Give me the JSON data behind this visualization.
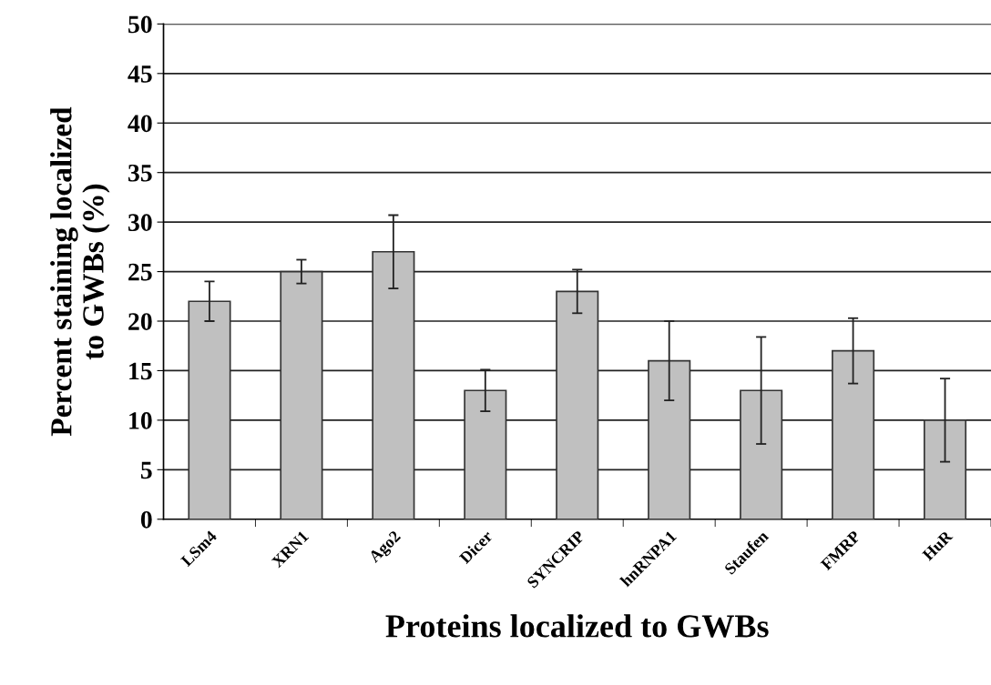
{
  "chart_data": {
    "type": "bar",
    "xlabel": "Proteins localized to GWBs",
    "ylabel": "Percent staining localized\nto GWBs (%)",
    "categories": [
      "LSm4",
      "XRN1",
      "Ago2",
      "Dicer",
      "SYNCRIP",
      "hnRNPA1",
      "Staufen",
      "FMRP",
      "HuR"
    ],
    "values": [
      22,
      25,
      27,
      13,
      23,
      16,
      13,
      17,
      10
    ],
    "errors": [
      2,
      1.2,
      3.7,
      2.1,
      2.2,
      4,
      5.4,
      3.3,
      4.2
    ],
    "color": "#c0c0c0",
    "ylim": [
      0,
      50
    ],
    "yticks": [
      0,
      5,
      10,
      15,
      20,
      25,
      30,
      35,
      40,
      45,
      50
    ],
    "grid": "y"
  }
}
